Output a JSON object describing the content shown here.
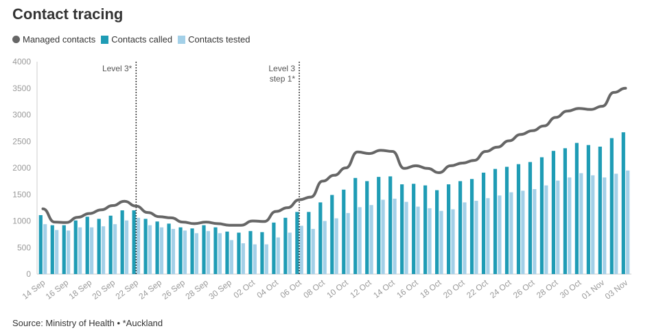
{
  "title": "Contact tracing",
  "source": "Source: Ministry of Health • *Auckland",
  "chart_data": {
    "type": "bar",
    "title": "Contact tracing",
    "xlabel": "",
    "ylabel": "",
    "ylim": [
      0,
      4000
    ],
    "yticks": [
      "0",
      "500",
      "1000",
      "1500",
      "2000",
      "2500",
      "3000",
      "3500",
      "4000"
    ],
    "x_tick_labels": [
      "14 Sep",
      "16 Sep",
      "18 Sep",
      "20 Sep",
      "22 Sep",
      "24 Sep",
      "26 Sep",
      "28 Sep",
      "30 Sep",
      "02 Oct",
      "04 Oct",
      "06 Oct",
      "08 Oct",
      "10 Oct",
      "12 Oct",
      "14 Oct",
      "16 Oct",
      "18 Oct",
      "20 Oct",
      "22 Oct",
      "24 Oct",
      "26 Oct",
      "28 Oct",
      "30 Oct",
      "01 Nov",
      "03 Nov"
    ],
    "dates": [
      "14 Sep",
      "15 Sep",
      "16 Sep",
      "17 Sep",
      "18 Sep",
      "19 Sep",
      "20 Sep",
      "21 Sep",
      "22 Sep",
      "23 Sep",
      "24 Sep",
      "25 Sep",
      "26 Sep",
      "27 Sep",
      "28 Sep",
      "29 Sep",
      "30 Sep",
      "01 Oct",
      "02 Oct",
      "03 Oct",
      "04 Oct",
      "05 Oct",
      "06 Oct",
      "07 Oct",
      "08 Oct",
      "09 Oct",
      "10 Oct",
      "11 Oct",
      "12 Oct",
      "13 Oct",
      "14 Oct",
      "15 Oct",
      "16 Oct",
      "17 Oct",
      "18 Oct",
      "19 Oct",
      "20 Oct",
      "21 Oct",
      "22 Oct",
      "23 Oct",
      "24 Oct",
      "25 Oct",
      "26 Oct",
      "27 Oct",
      "28 Oct",
      "29 Oct",
      "30 Oct",
      "31 Oct",
      "01 Nov",
      "02 Nov",
      "03 Nov"
    ],
    "series": [
      {
        "name": "Managed contacts",
        "kind": "line",
        "color": "#666666",
        "values": [
          1230,
          980,
          970,
          1070,
          1140,
          1210,
          1290,
          1370,
          1280,
          1160,
          1080,
          1060,
          980,
          950,
          980,
          950,
          920,
          920,
          1000,
          990,
          1180,
          1250,
          1400,
          1450,
          1750,
          1860,
          2000,
          2300,
          2270,
          2330,
          2310,
          1990,
          2040,
          1990,
          1910,
          2040,
          2090,
          2140,
          2310,
          2390,
          2510,
          2630,
          2700,
          2790,
          2950,
          3070,
          3120,
          3100,
          3160,
          3420,
          3500
        ]
      },
      {
        "name": "Contacts called",
        "kind": "bar",
        "color": "#1f9cb5",
        "values": [
          1110,
          920,
          920,
          1010,
          1080,
          1040,
          1100,
          1200,
          1200,
          1040,
          990,
          950,
          880,
          860,
          920,
          880,
          800,
          780,
          810,
          790,
          970,
          1060,
          1170,
          1170,
          1350,
          1490,
          1590,
          1810,
          1750,
          1830,
          1840,
          1690,
          1700,
          1670,
          1580,
          1690,
          1750,
          1790,
          1910,
          1980,
          2020,
          2070,
          2110,
          2200,
          2320,
          2370,
          2470,
          2430,
          2400,
          2560,
          2670
        ]
      },
      {
        "name": "Contacts tested",
        "kind": "bar",
        "color": "#a3d0e8",
        "values": [
          940,
          830,
          820,
          880,
          880,
          900,
          940,
          1010,
          1060,
          920,
          880,
          850,
          820,
          770,
          810,
          770,
          640,
          580,
          560,
          560,
          690,
          780,
          910,
          850,
          1000,
          1050,
          1150,
          1260,
          1300,
          1400,
          1420,
          1360,
          1270,
          1240,
          1190,
          1220,
          1350,
          1380,
          1430,
          1480,
          1540,
          1570,
          1600,
          1670,
          1760,
          1820,
          1900,
          1860,
          1820,
          1890,
          1950
        ]
      }
    ],
    "annotations": [
      {
        "label_lines": [
          "Level 3*"
        ],
        "x": "22 Sep"
      },
      {
        "label_lines": [
          "Level 3",
          "step 1*"
        ],
        "x": "06 Oct"
      }
    ],
    "legend": "top-left",
    "grid": false
  }
}
